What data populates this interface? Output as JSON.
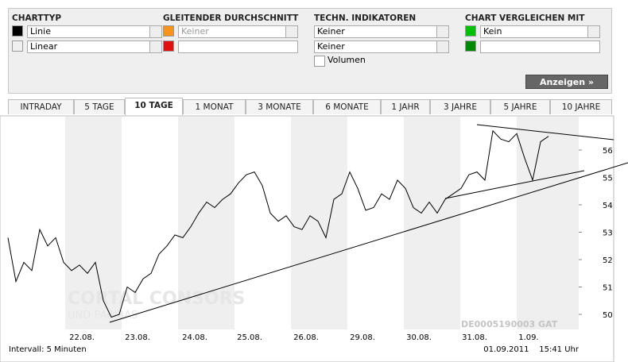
{
  "panel": {
    "columns": [
      {
        "title": "CHARTTYP",
        "fields": [
          "Linie",
          "Linear"
        ]
      },
      {
        "title": "GLEITENDER DURCHSCHNITT",
        "fields": [
          "Keiner"
        ]
      },
      {
        "title": "TECHN. INDIKATOREN",
        "fields": [
          "Keiner",
          "Keiner"
        ],
        "checkbox": "Volumen"
      },
      {
        "title": "CHART VERGLEICHEN MIT",
        "fields": [
          "Kein"
        ]
      }
    ],
    "button": "Anzeigen »"
  },
  "tabs": {
    "items": [
      "INTRADAY",
      "5 TAGE",
      "10 TAGE",
      "1 MONAT",
      "3 MONATE",
      "6 MONATE",
      "1 JAHR",
      "3 JAHRE",
      "5 JAHRE",
      "10 JAHRE"
    ],
    "active": "10 TAGE"
  },
  "chart": {
    "type": "line",
    "color": "#000000",
    "categories": [
      "22.08.",
      "23.08.",
      "24.08.",
      "25.08.",
      "26.08.",
      "29.08.",
      "30.08.",
      "31.08.",
      "1.09."
    ],
    "values": [
      52.8,
      51.2,
      51.9,
      51.6,
      53.1,
      52.5,
      52.8,
      51.9,
      51.6,
      51.8,
      51.5,
      51.9,
      50.5,
      49.9,
      50.0,
      51.0,
      50.8,
      51.3,
      51.5,
      52.2,
      52.5,
      52.9,
      52.8,
      53.2,
      53.7,
      54.1,
      53.9,
      54.2,
      54.4,
      54.8,
      55.1,
      55.2,
      54.7,
      53.7,
      53.4,
      53.6,
      53.2,
      53.1,
      53.6,
      53.4,
      52.8,
      54.2,
      54.4,
      55.2,
      54.6,
      53.8,
      53.9,
      54.4,
      54.2,
      54.9,
      54.6,
      53.9,
      53.7,
      54.1,
      53.7,
      54.2,
      54.4,
      54.6,
      55.1,
      55.2,
      54.9,
      56.7,
      56.4,
      56.3,
      56.6,
      55.7,
      54.9,
      56.3,
      56.5
    ],
    "ylim": [
      49.45,
      57.13
    ],
    "yticks": [
      50,
      51,
      52,
      53,
      54,
      55,
      56
    ],
    "isin": "DE0005190003 GAT",
    "watermark": [
      "CORTAL CONSORS",
      "UND PARIBAS"
    ],
    "interval": "Intervall: 5 Minuten",
    "timestamp": "01.09.2011    15:41 Uhr"
  }
}
